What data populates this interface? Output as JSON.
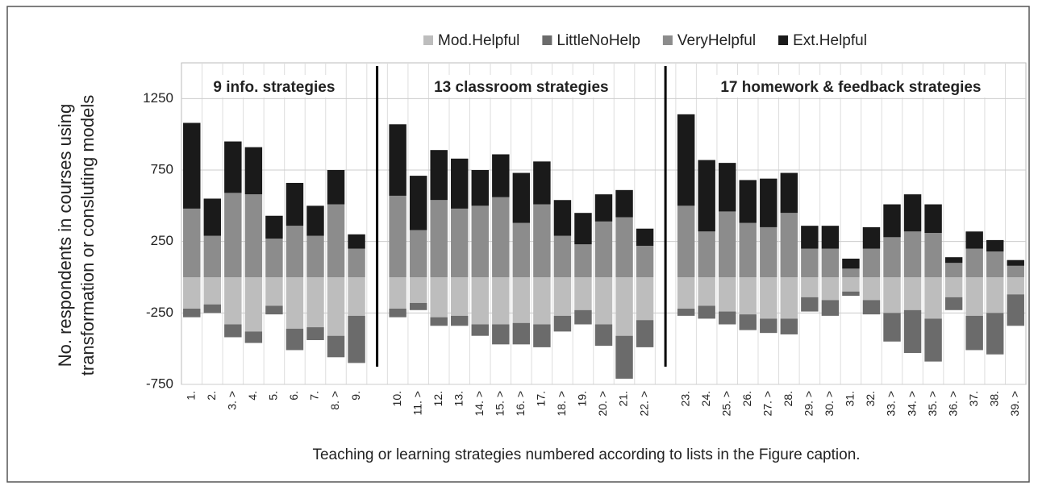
{
  "chart_data": {
    "type": "diverging-stacked-bar",
    "ylabel": [
      "No. respondents in courses using",
      "transformation or consluting models"
    ],
    "xlabel": "Teaching or learning strategies numbered according to lists in the Figure caption.",
    "annotations": [
      "9 info. strategies",
      "13 classroom strategies",
      "17 homework & feedback strategies"
    ],
    "categories": [
      "1.",
      "2.",
      "3. >",
      "4.",
      "5.",
      "6.",
      "7.",
      "8. >",
      "9.",
      null,
      "10.",
      "11. >",
      "12.",
      "13.",
      "14. >",
      "15. >",
      "16. >",
      "17.",
      "18. >",
      "19.",
      "20. >",
      "21.",
      "22. >",
      null,
      "23.",
      "24.",
      "25. >",
      "26.",
      "27. >",
      "28.",
      "29. >",
      "30. >",
      "31.",
      "32.",
      "33. >",
      "34. >",
      "35. >",
      "36. >",
      "37.",
      "38.",
      "39. >"
    ],
    "series": [
      {
        "name": "Mod.Helpful",
        "color": "#bdbdbd",
        "values": [
          -220,
          -190,
          -330,
          -380,
          -200,
          -360,
          -350,
          -410,
          -270,
          null,
          -220,
          -180,
          -280,
          -270,
          -330,
          -330,
          -320,
          -330,
          -270,
          -230,
          -330,
          -410,
          -300,
          null,
          -220,
          -200,
          -240,
          -260,
          -290,
          -290,
          -140,
          -160,
          -100,
          -160,
          -250,
          -230,
          -290,
          -140,
          -270,
          -250,
          -120
        ]
      },
      {
        "name": "LittleNoHelp",
        "color": "#6b6b6b",
        "values": [
          -60,
          -60,
          -90,
          -80,
          -60,
          -150,
          -90,
          -150,
          -330,
          null,
          -60,
          -50,
          -60,
          -70,
          -80,
          -140,
          -150,
          -160,
          -110,
          -100,
          -150,
          -300,
          -190,
          null,
          -50,
          -90,
          -90,
          -110,
          -100,
          -110,
          -100,
          -110,
          -30,
          -100,
          -200,
          -300,
          -300,
          -90,
          -240,
          -290,
          -220
        ]
      },
      {
        "name": "VeryHelpful",
        "color": "#8c8c8c",
        "values": [
          480,
          290,
          590,
          580,
          270,
          360,
          290,
          510,
          200,
          null,
          570,
          330,
          540,
          480,
          500,
          560,
          380,
          510,
          290,
          230,
          390,
          420,
          220,
          null,
          500,
          320,
          460,
          380,
          350,
          450,
          200,
          200,
          60,
          200,
          280,
          320,
          310,
          100,
          200,
          180,
          80
        ]
      },
      {
        "name": "Ext.Helpful",
        "color": "#1a1a1a",
        "values": [
          600,
          260,
          360,
          330,
          160,
          300,
          210,
          240,
          100,
          null,
          500,
          380,
          350,
          350,
          250,
          300,
          350,
          300,
          250,
          220,
          190,
          190,
          120,
          null,
          640,
          500,
          340,
          300,
          340,
          280,
          160,
          160,
          70,
          150,
          230,
          260,
          200,
          40,
          120,
          80,
          40
        ]
      }
    ],
    "ylim": [
      -750,
      1500
    ],
    "yticks": [
      -750,
      -250,
      250,
      750,
      1250
    ],
    "grid": true
  }
}
